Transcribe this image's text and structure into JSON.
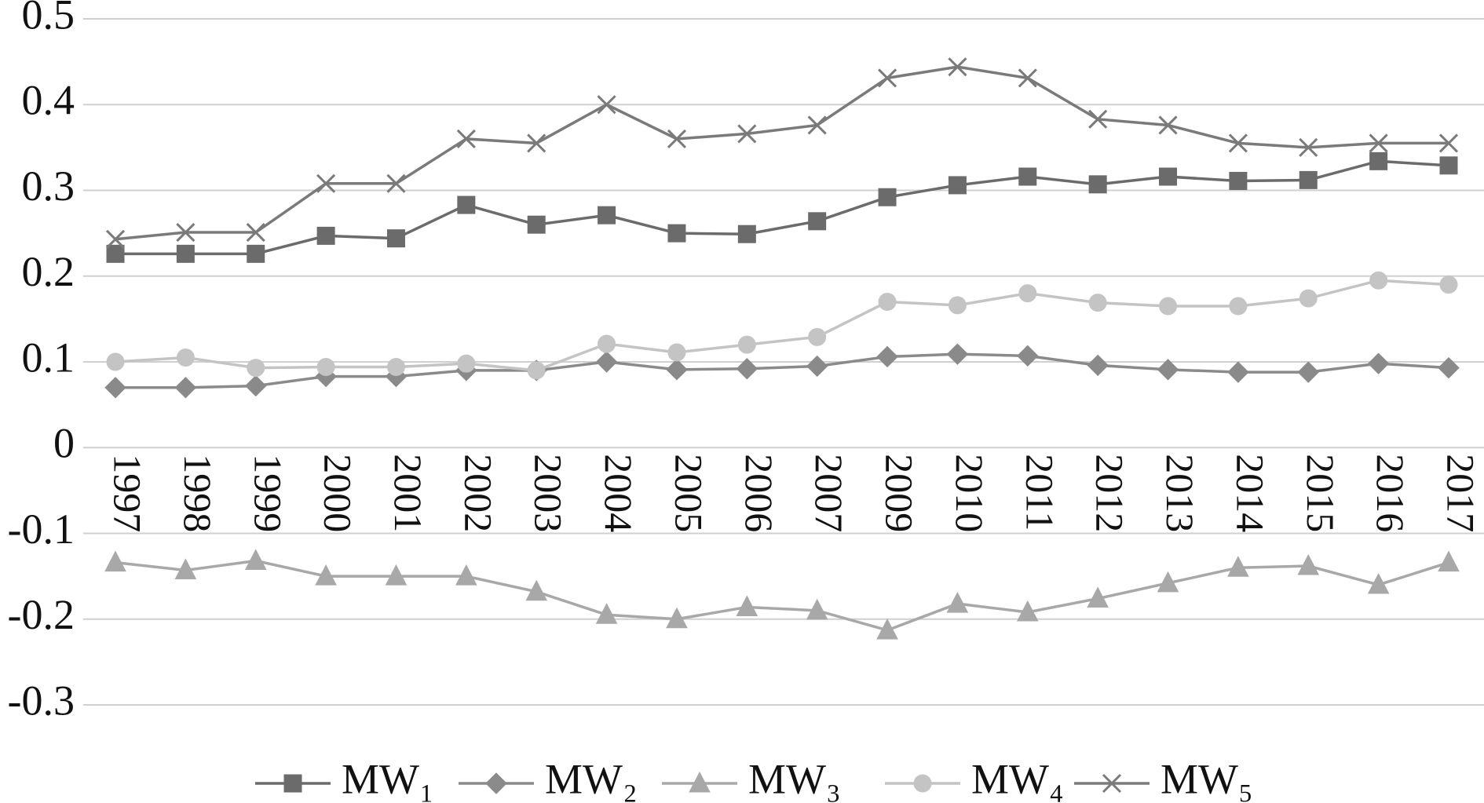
{
  "chart_data": {
    "type": "line",
    "categories": [
      "1997",
      "1998",
      "1999",
      "2000",
      "2001",
      "2002",
      "2003",
      "2004",
      "2005",
      "2006",
      "2007",
      "2009",
      "2010",
      "2011",
      "2012",
      "2013",
      "2014",
      "2015",
      "2016",
      "2017"
    ],
    "series": [
      {
        "name": "MW₁",
        "color": "#6b6b6b",
        "marker": "square",
        "values": [
          0.226,
          0.226,
          0.226,
          0.247,
          0.244,
          0.283,
          0.26,
          0.271,
          0.25,
          0.249,
          0.264,
          0.292,
          0.306,
          0.316,
          0.307,
          0.316,
          0.311,
          0.312,
          0.334,
          0.329
        ]
      },
      {
        "name": "MW₂",
        "color": "#8a8a8a",
        "marker": "diamond",
        "values": [
          0.07,
          0.07,
          0.072,
          0.083,
          0.083,
          0.09,
          0.09,
          0.1,
          0.091,
          0.092,
          0.095,
          0.106,
          0.109,
          0.107,
          0.096,
          0.091,
          0.088,
          0.088,
          0.098,
          0.093
        ]
      },
      {
        "name": "MW₃",
        "color": "#a8a8a8",
        "marker": "triangle",
        "values": [
          -0.134,
          -0.143,
          -0.132,
          -0.15,
          -0.15,
          -0.15,
          -0.168,
          -0.195,
          -0.2,
          -0.186,
          -0.19,
          -0.213,
          -0.182,
          -0.192,
          -0.176,
          -0.158,
          -0.14,
          -0.138,
          -0.16,
          -0.134
        ]
      },
      {
        "name": "MW₄",
        "color": "#c4c4c4",
        "marker": "circle",
        "values": [
          0.1,
          0.105,
          0.093,
          0.094,
          0.094,
          0.098,
          0.09,
          0.121,
          0.111,
          0.12,
          0.129,
          0.17,
          0.166,
          0.18,
          0.169,
          0.165,
          0.165,
          0.174,
          0.195,
          0.19
        ]
      },
      {
        "name": "MW₅",
        "color": "#7a7a7a",
        "marker": "x",
        "values": [
          0.243,
          0.251,
          0.251,
          0.308,
          0.308,
          0.36,
          0.355,
          0.4,
          0.36,
          0.366,
          0.376,
          0.431,
          0.444,
          0.431,
          0.383,
          0.376,
          0.355,
          0.35,
          0.355,
          0.355
        ]
      }
    ],
    "ylim": [
      -0.3,
      0.5
    ],
    "yticks": [
      -0.3,
      -0.2,
      -0.1,
      0,
      0.1,
      0.2,
      0.3,
      0.4,
      0.5
    ],
    "grid": true,
    "legend": "bottom"
  }
}
